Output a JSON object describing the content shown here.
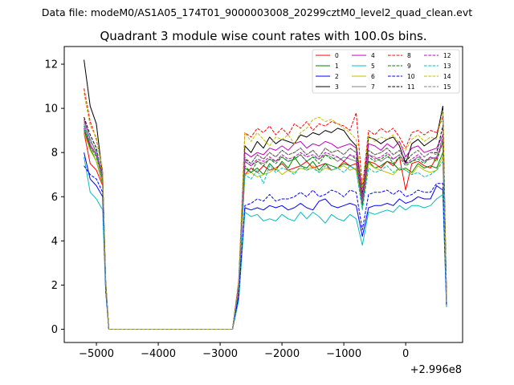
{
  "figure": {
    "suptitle": "Data file: modeM0/AS1A05_174T01_9000003008_20299cztM0_level2_quad_clean.evt"
  },
  "chart_data": {
    "type": "line",
    "title": "Quadrant 3 module wise count rates with 100.0s bins.",
    "xlabel": "",
    "ylabel": "",
    "x_offset_label": "+2.996e8",
    "x_offset": 299600000,
    "xlim": [
      -5520,
      920
    ],
    "ylim": [
      -0.6,
      12.8
    ],
    "xticks": [
      -5000,
      -4000,
      -3000,
      -2000,
      -1000,
      0
    ],
    "xtick_labels": [
      "−5000",
      "−4000",
      "−3000",
      "−2000",
      "−1000",
      "0"
    ],
    "yticks": [
      0,
      2,
      4,
      6,
      8,
      10,
      12
    ],
    "ytick_labels": [
      "0",
      "2",
      "4",
      "6",
      "8",
      "10",
      "12"
    ],
    "grid": false,
    "legend_placement": "top-right",
    "x": [
      -5200,
      -5100,
      -5000,
      -4900,
      -4850,
      -4800,
      -4700,
      -4600,
      -4500,
      -4400,
      -4300,
      -4200,
      -4100,
      -4000,
      -3900,
      -3800,
      -3700,
      -3600,
      -3500,
      -3400,
      -3300,
      -3200,
      -3100,
      -3000,
      -2900,
      -2800,
      -2700,
      -2600,
      -2500,
      -2400,
      -2300,
      -2200,
      -2100,
      -2000,
      -1900,
      -1800,
      -1700,
      -1600,
      -1500,
      -1400,
      -1300,
      -1200,
      -1100,
      -1000,
      -900,
      -800,
      -700,
      -600,
      -500,
      -400,
      -300,
      -200,
      -100,
      0,
      100,
      200,
      300,
      400,
      500,
      600,
      660
    ],
    "series": [
      {
        "name": "0",
        "color": "#ff0000",
        "dash": "solid",
        "values": [
          8.9,
          7.5,
          7.2,
          6.5,
          2.0,
          0,
          0,
          0,
          0,
          0,
          0,
          0,
          0,
          0,
          0,
          0,
          0,
          0,
          0,
          0,
          0,
          0,
          0,
          0,
          0,
          0,
          1.8,
          7.0,
          7.3,
          7.1,
          7.4,
          7.2,
          7.3,
          7.5,
          7.2,
          7.3,
          7.4,
          7.6,
          7.3,
          7.4,
          7.5,
          7.2,
          7.3,
          7.6,
          7.4,
          7.5,
          5.8,
          7.6,
          7.5,
          7.3,
          7.6,
          7.4,
          7.8,
          6.3,
          7.5,
          7.6,
          7.4,
          7.3,
          7.8,
          8.4,
          1.3
        ]
      },
      {
        "name": "1",
        "color": "#008000",
        "dash": "solid",
        "values": [
          9.0,
          8.2,
          7.6,
          6.6,
          2.0,
          0,
          0,
          0,
          0,
          0,
          0,
          0,
          0,
          0,
          0,
          0,
          0,
          0,
          0,
          0,
          0,
          0,
          0,
          0,
          0,
          0,
          1.9,
          7.3,
          7.1,
          7.3,
          7.0,
          7.5,
          7.2,
          7.6,
          7.3,
          7.8,
          7.4,
          7.3,
          7.6,
          7.2,
          7.5,
          7.4,
          7.3,
          7.5,
          7.4,
          7.2,
          5.7,
          7.6,
          7.3,
          7.4,
          7.6,
          7.5,
          7.2,
          7.3,
          7.1,
          7.5,
          7.3,
          7.4,
          7.3,
          8.0,
          1.1
        ]
      },
      {
        "name": "2",
        "color": "#0000ff",
        "dash": "solid",
        "values": [
          8.0,
          6.8,
          6.5,
          6.0,
          1.8,
          0,
          0,
          0,
          0,
          0,
          0,
          0,
          0,
          0,
          0,
          0,
          0,
          0,
          0,
          0,
          0,
          0,
          0,
          0,
          0,
          0,
          1.5,
          5.5,
          5.4,
          5.5,
          5.4,
          5.6,
          5.5,
          5.6,
          5.4,
          5.5,
          5.7,
          5.5,
          5.4,
          5.8,
          5.9,
          5.6,
          5.5,
          5.6,
          5.7,
          5.6,
          4.2,
          5.5,
          5.6,
          5.6,
          5.7,
          5.6,
          5.9,
          5.7,
          5.8,
          6.0,
          5.9,
          5.9,
          6.5,
          6.3,
          1.0
        ]
      },
      {
        "name": "3",
        "color": "#000000",
        "dash": "solid",
        "values": [
          12.2,
          10.1,
          9.3,
          6.9,
          2.2,
          0,
          0,
          0,
          0,
          0,
          0,
          0,
          0,
          0,
          0,
          0,
          0,
          0,
          0,
          0,
          0,
          0,
          0,
          0,
          0,
          0,
          2.1,
          8.3,
          8.0,
          8.5,
          8.2,
          8.7,
          8.4,
          8.6,
          8.5,
          8.4,
          8.8,
          8.7,
          8.9,
          8.8,
          9.0,
          8.9,
          9.1,
          9.0,
          8.6,
          8.3,
          6.2,
          8.7,
          8.6,
          8.4,
          8.6,
          8.7,
          8.3,
          7.5,
          8.4,
          8.6,
          8.3,
          8.5,
          8.7,
          10.1,
          1.5
        ]
      },
      {
        "name": "4",
        "color": "#bf00bf",
        "dash": "solid",
        "values": [
          9.5,
          8.6,
          8.0,
          7.0,
          2.1,
          0,
          0,
          0,
          0,
          0,
          0,
          0,
          0,
          0,
          0,
          0,
          0,
          0,
          0,
          0,
          0,
          0,
          0,
          0,
          0,
          0,
          2.0,
          8.0,
          7.8,
          8.0,
          7.9,
          8.2,
          8.1,
          8.3,
          8.1,
          8.4,
          8.5,
          8.2,
          8.4,
          8.3,
          8.5,
          8.4,
          8.2,
          8.3,
          8.4,
          8.2,
          6.0,
          8.4,
          8.3,
          8.1,
          8.4,
          8.2,
          8.5,
          7.8,
          8.2,
          8.3,
          8.0,
          8.1,
          8.2,
          8.8,
          1.3
        ]
      },
      {
        "name": "5",
        "color": "#00bfbf",
        "dash": "solid",
        "values": [
          7.8,
          6.2,
          5.9,
          5.4,
          1.7,
          0,
          0,
          0,
          0,
          0,
          0,
          0,
          0,
          0,
          0,
          0,
          0,
          0,
          0,
          0,
          0,
          0,
          0,
          0,
          0,
          0,
          1.3,
          5.3,
          5.1,
          5.2,
          4.9,
          5.0,
          4.9,
          5.2,
          5.0,
          4.9,
          5.3,
          5.0,
          5.3,
          5.1,
          4.8,
          5.2,
          5.0,
          4.9,
          5.2,
          5.0,
          3.8,
          5.3,
          5.2,
          5.3,
          5.4,
          5.3,
          5.6,
          5.4,
          5.6,
          5.6,
          5.5,
          5.6,
          5.9,
          6.1,
          1.0
        ]
      },
      {
        "name": "6",
        "color": "#bfbf00",
        "dash": "solid",
        "values": [
          8.9,
          8.1,
          7.6,
          6.7,
          2.0,
          0,
          0,
          0,
          0,
          0,
          0,
          0,
          0,
          0,
          0,
          0,
          0,
          0,
          0,
          0,
          0,
          0,
          0,
          0,
          0,
          0,
          1.9,
          7.0,
          7.1,
          6.9,
          7.0,
          7.1,
          7.3,
          7.0,
          7.2,
          7.1,
          7.3,
          7.2,
          7.4,
          7.1,
          7.3,
          7.2,
          7.3,
          7.4,
          7.2,
          7.3,
          5.5,
          7.5,
          7.3,
          7.2,
          7.1,
          7.0,
          7.3,
          7.2,
          7.0,
          7.4,
          7.2,
          7.1,
          7.2,
          7.8,
          1.2
        ]
      },
      {
        "name": "7",
        "color": "#808080",
        "dash": "solid",
        "values": [
          9.3,
          8.4,
          7.9,
          6.8,
          2.1,
          0,
          0,
          0,
          0,
          0,
          0,
          0,
          0,
          0,
          0,
          0,
          0,
          0,
          0,
          0,
          0,
          0,
          0,
          0,
          0,
          0,
          1.9,
          7.6,
          7.4,
          7.6,
          7.5,
          7.7,
          7.6,
          7.8,
          7.6,
          7.7,
          7.9,
          7.6,
          7.8,
          7.7,
          7.9,
          7.8,
          7.6,
          7.8,
          7.7,
          7.6,
          5.7,
          7.9,
          7.8,
          7.6,
          7.8,
          7.7,
          7.9,
          7.5,
          7.6,
          7.8,
          7.6,
          7.7,
          7.8,
          8.4,
          1.2
        ]
      },
      {
        "name": "8",
        "color": "#ff0000",
        "dash": "dashed",
        "values": [
          10.9,
          9.4,
          8.6,
          7.2,
          2.2,
          0,
          0,
          0,
          0,
          0,
          0,
          0,
          0,
          0,
          0,
          0,
          0,
          0,
          0,
          0,
          0,
          0,
          0,
          0,
          0,
          0,
          2.2,
          8.9,
          8.7,
          9.1,
          8.9,
          9.2,
          8.8,
          9.1,
          8.8,
          9.3,
          9.1,
          9.4,
          9.0,
          9.3,
          9.2,
          9.4,
          9.3,
          9.2,
          9.0,
          9.8,
          6.4,
          9.0,
          8.8,
          9.1,
          8.9,
          9.1,
          8.7,
          8.2,
          8.9,
          9.0,
          8.8,
          9.0,
          8.9,
          9.6,
          1.6
        ]
      },
      {
        "name": "9",
        "color": "#008000",
        "dash": "dashed",
        "values": [
          9.2,
          8.3,
          7.8,
          6.8,
          2.1,
          0,
          0,
          0,
          0,
          0,
          0,
          0,
          0,
          0,
          0,
          0,
          0,
          0,
          0,
          0,
          0,
          0,
          0,
          0,
          0,
          0,
          2.0,
          7.4,
          7.1,
          7.6,
          7.4,
          7.7,
          7.5,
          7.8,
          7.6,
          7.7,
          7.9,
          7.6,
          7.8,
          7.5,
          7.9,
          7.7,
          7.8,
          7.6,
          7.9,
          7.7,
          5.6,
          7.8,
          7.6,
          7.7,
          7.9,
          7.5,
          7.8,
          7.4,
          7.6,
          7.7,
          7.5,
          7.8,
          7.6,
          8.5,
          1.3
        ]
      },
      {
        "name": "10",
        "color": "#0000ff",
        "dash": "dashed",
        "values": [
          7.4,
          7.0,
          6.8,
          6.2,
          1.8,
          0,
          0,
          0,
          0,
          0,
          0,
          0,
          0,
          0,
          0,
          0,
          0,
          0,
          0,
          0,
          0,
          0,
          0,
          0,
          0,
          0,
          1.5,
          5.6,
          5.7,
          5.9,
          5.8,
          6.1,
          5.8,
          5.9,
          5.9,
          6.0,
          6.2,
          6.0,
          6.3,
          6.0,
          6.1,
          6.3,
          6.2,
          6.0,
          6.3,
          6.2,
          4.5,
          6.1,
          6.2,
          6.2,
          6.3,
          6.1,
          6.3,
          6.0,
          6.1,
          6.3,
          6.2,
          6.2,
          6.6,
          6.6,
          1.1
        ]
      },
      {
        "name": "11",
        "color": "#000000",
        "dash": "dashed",
        "values": [
          9.6,
          8.8,
          8.2,
          6.9,
          2.1,
          0,
          0,
          0,
          0,
          0,
          0,
          0,
          0,
          0,
          0,
          0,
          0,
          0,
          0,
          0,
          0,
          0,
          0,
          0,
          0,
          0,
          2.0,
          7.7,
          7.5,
          7.9,
          7.7,
          8.0,
          7.8,
          8.1,
          7.9,
          8.0,
          8.2,
          7.9,
          8.1,
          7.8,
          8.2,
          8.0,
          8.1,
          7.9,
          8.2,
          8.0,
          5.8,
          8.1,
          7.9,
          8.0,
          8.2,
          7.9,
          8.1,
          7.6,
          7.9,
          8.1,
          7.8,
          8.0,
          8.0,
          9.2,
          1.4
        ]
      },
      {
        "name": "12",
        "color": "#bf00bf",
        "dash": "dashed",
        "values": [
          9.1,
          8.3,
          7.9,
          6.8,
          2.1,
          0,
          0,
          0,
          0,
          0,
          0,
          0,
          0,
          0,
          0,
          0,
          0,
          0,
          0,
          0,
          0,
          0,
          0,
          0,
          0,
          0,
          1.9,
          7.6,
          7.4,
          7.7,
          7.6,
          7.8,
          7.6,
          7.9,
          7.7,
          7.8,
          8.0,
          7.8,
          7.9,
          7.7,
          8.0,
          7.9,
          7.8,
          7.6,
          7.9,
          7.8,
          5.7,
          7.9,
          7.7,
          7.8,
          8.0,
          7.7,
          7.9,
          7.5,
          7.7,
          7.9,
          7.6,
          7.8,
          7.7,
          8.6,
          1.3
        ]
      },
      {
        "name": "13",
        "color": "#00bfbf",
        "dash": "dashed",
        "values": [
          9.2,
          8.5,
          8.1,
          6.9,
          2.1,
          0,
          0,
          0,
          0,
          0,
          0,
          0,
          0,
          0,
          0,
          0,
          0,
          0,
          0,
          0,
          0,
          0,
          0,
          0,
          0,
          0,
          1.9,
          7.0,
          6.8,
          7.2,
          6.6,
          7.4,
          7.1,
          7.3,
          7.2,
          7.0,
          7.4,
          7.2,
          7.3,
          7.1,
          7.4,
          7.2,
          7.3,
          7.1,
          7.4,
          7.2,
          5.4,
          7.3,
          7.1,
          7.2,
          7.4,
          7.1,
          7.3,
          7.2,
          7.0,
          7.1,
          6.9,
          7.0,
          7.2,
          7.6,
          1.2
        ]
      },
      {
        "name": "14",
        "color": "#bfbf00",
        "dash": "dashed",
        "values": [
          10.7,
          9.2,
          8.7,
          7.1,
          2.2,
          0,
          0,
          0,
          0,
          0,
          0,
          0,
          0,
          0,
          0,
          0,
          0,
          0,
          0,
          0,
          0,
          0,
          0,
          0,
          0,
          0,
          2.1,
          8.9,
          8.5,
          8.9,
          8.6,
          8.3,
          8.7,
          8.6,
          8.8,
          8.4,
          8.9,
          9.1,
          9.5,
          9.6,
          9.4,
          9.5,
          9.3,
          9.1,
          8.9,
          8.6,
          6.3,
          8.8,
          8.5,
          8.7,
          8.6,
          8.8,
          8.4,
          8.1,
          8.6,
          8.8,
          8.5,
          8.7,
          8.6,
          9.9,
          1.5
        ]
      },
      {
        "name": "15",
        "color": "#808080",
        "dash": "dashed",
        "values": [
          9.4,
          8.6,
          8.0,
          6.9,
          2.1,
          0,
          0,
          0,
          0,
          0,
          0,
          0,
          0,
          0,
          0,
          0,
          0,
          0,
          0,
          0,
          0,
          0,
          0,
          0,
          0,
          0,
          2.0,
          7.8,
          7.5,
          7.9,
          7.7,
          8.0,
          7.8,
          8.1,
          7.9,
          8.0,
          8.2,
          7.9,
          8.1,
          7.8,
          8.2,
          8.0,
          8.1,
          7.9,
          8.2,
          8.0,
          5.8,
          8.1,
          7.9,
          8.0,
          8.2,
          7.9,
          8.1,
          7.7,
          7.9,
          8.1,
          7.8,
          8.0,
          7.9,
          8.7,
          1.3
        ]
      }
    ]
  }
}
